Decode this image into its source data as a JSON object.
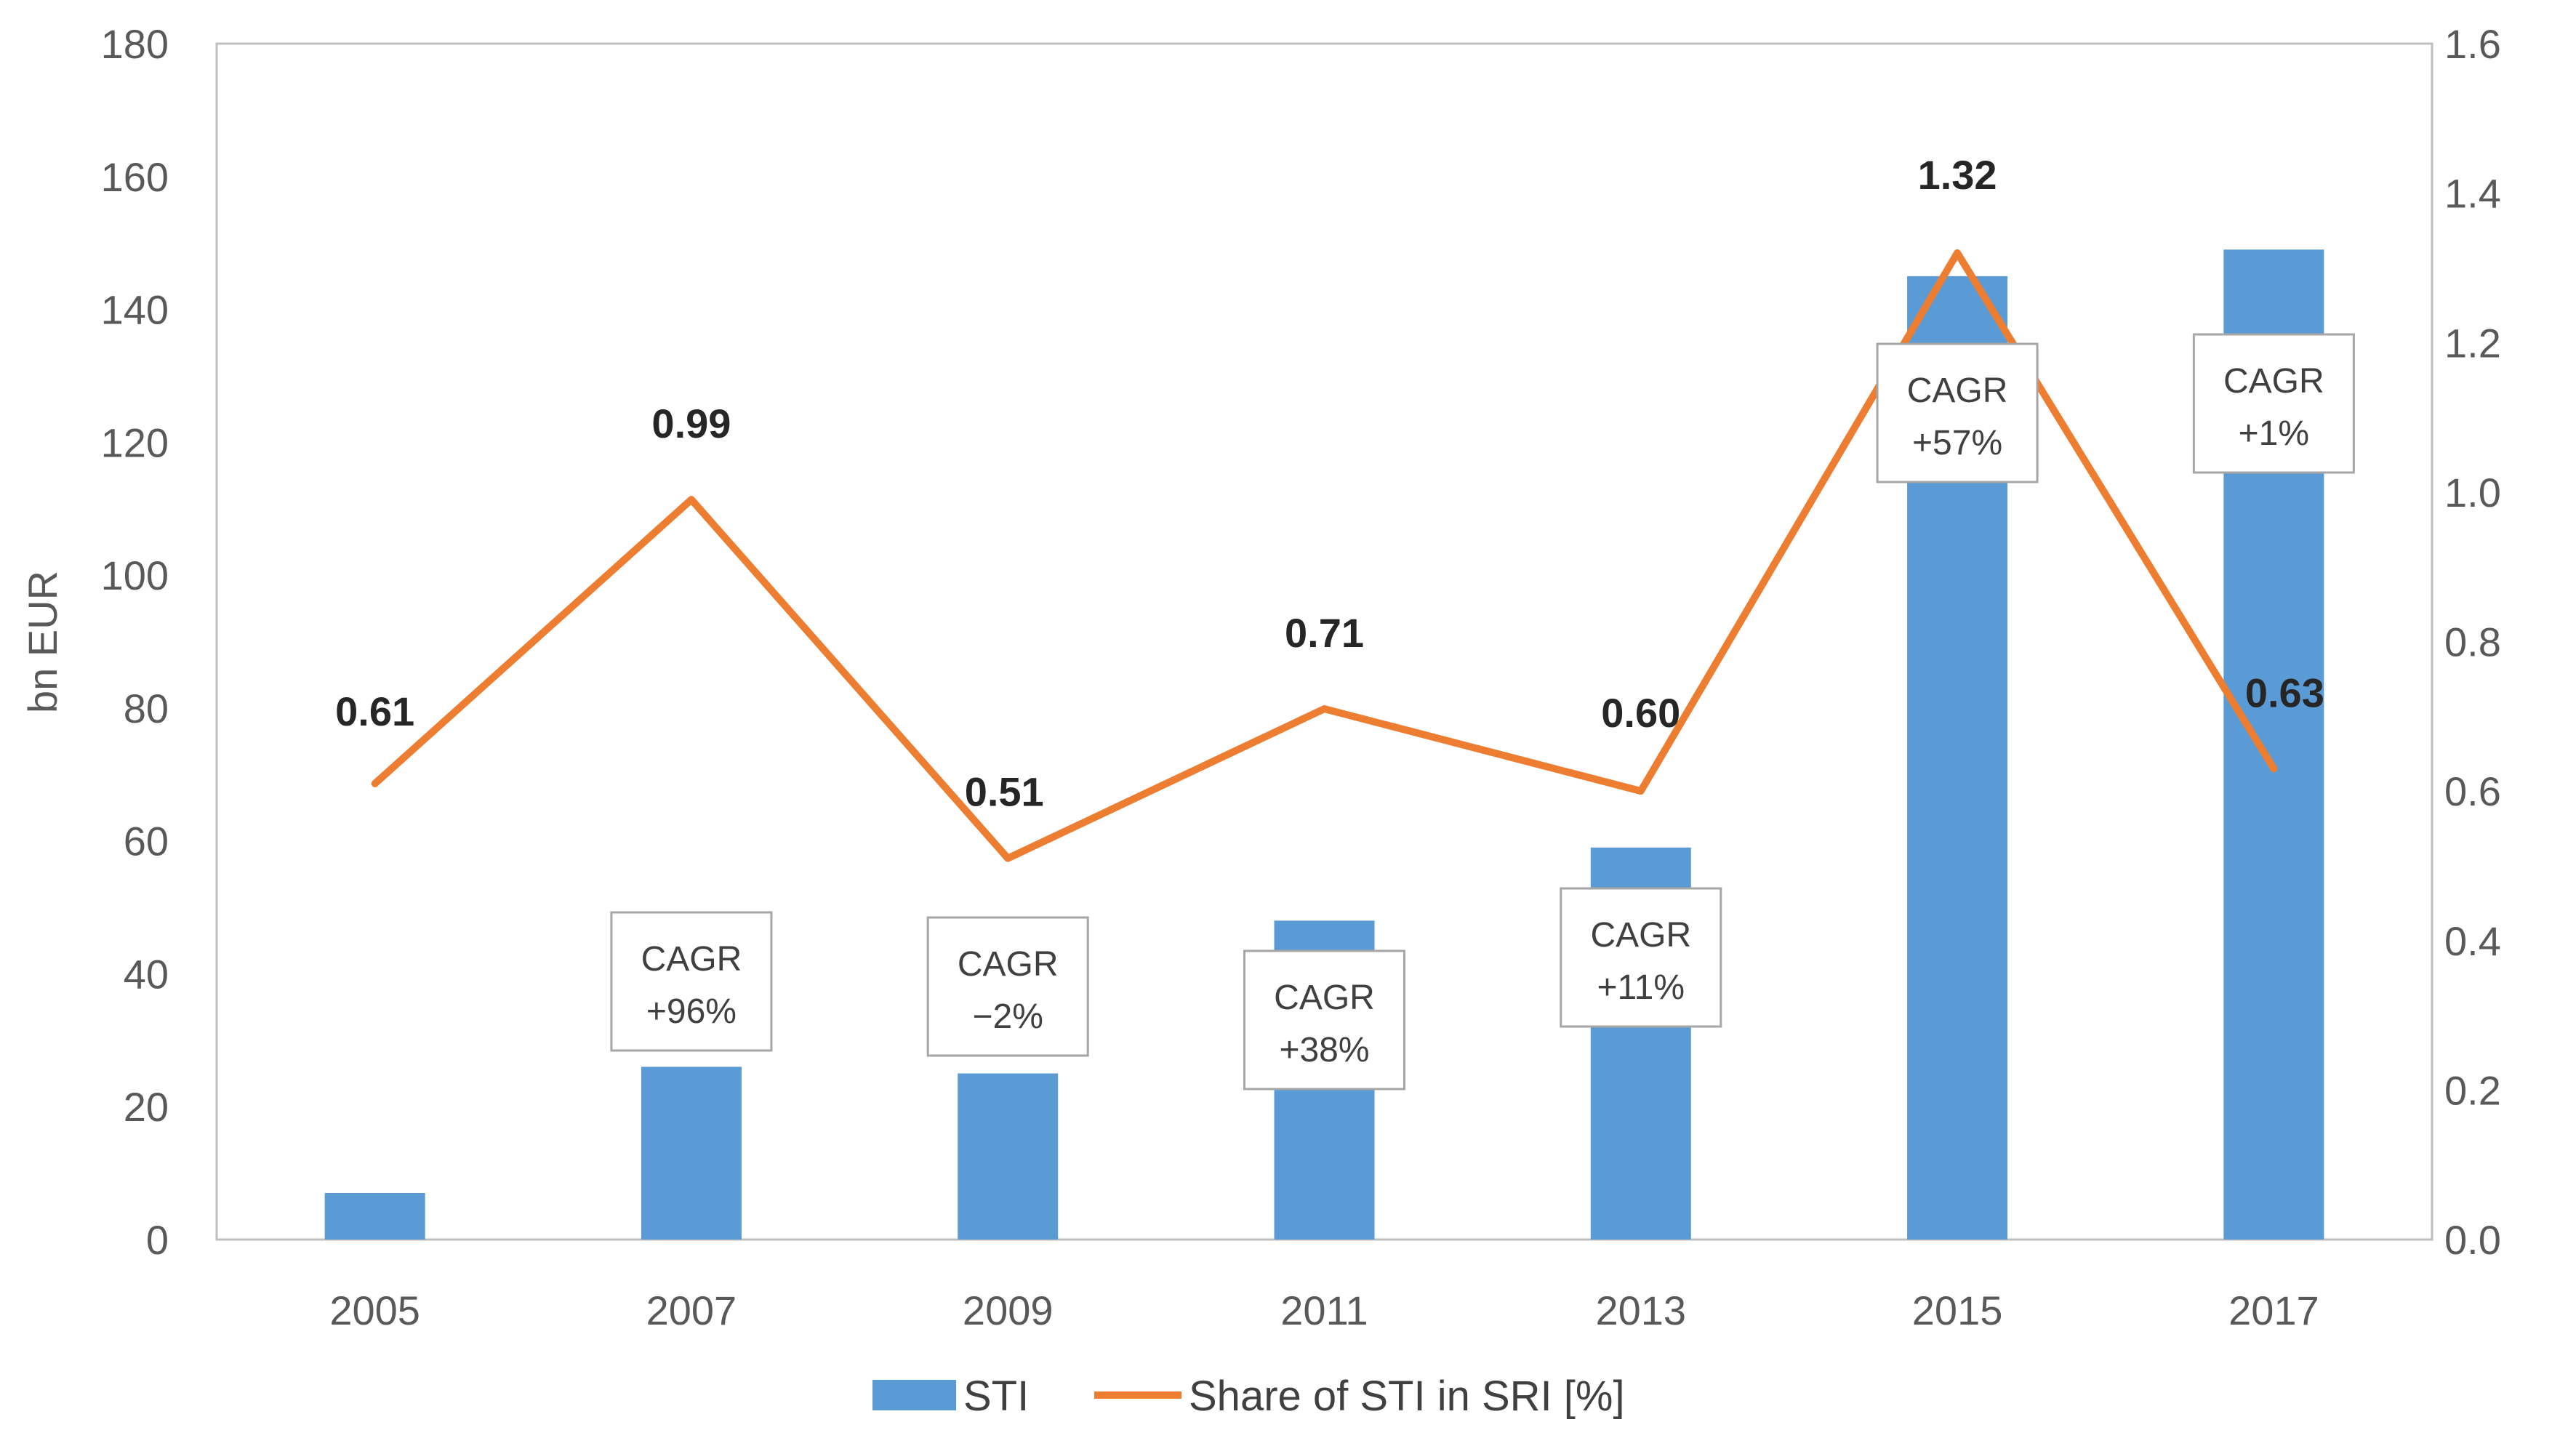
{
  "chart_data": {
    "type": "bar",
    "categories": [
      "2005",
      "2007",
      "2009",
      "2011",
      "2013",
      "2015",
      "2017"
    ],
    "series": [
      {
        "name": "STI",
        "kind": "bar",
        "axis": "left",
        "color": "#5B9BD5",
        "values": [
          7,
          26,
          25,
          48,
          59,
          145,
          149
        ]
      },
      {
        "name": "Share of STI in SRI [%]",
        "kind": "line",
        "axis": "right",
        "color": "#ED7D31",
        "values": [
          0.61,
          0.99,
          0.51,
          0.71,
          0.6,
          1.32,
          0.63
        ],
        "labels": [
          "0.61",
          "0.99",
          "0.51",
          "0.71",
          "0.60",
          "1.32",
          "0.63"
        ]
      }
    ],
    "ylabel": "bn EUR",
    "ylim": [
      0,
      180
    ],
    "yticks": [
      "0",
      "20",
      "40",
      "60",
      "80",
      "100",
      "120",
      "140",
      "160",
      "180"
    ],
    "y2lim": [
      0,
      1.6
    ],
    "y2ticks": [
      "0.0",
      "0.2",
      "0.4",
      "0.6",
      "0.8",
      "1.0",
      "1.2",
      "1.4",
      "1.6"
    ],
    "annotations": [
      {
        "category": "2007",
        "line1": "CAGR",
        "line2": "+96%"
      },
      {
        "category": "2009",
        "line1": "CAGR",
        "line2": "−2%"
      },
      {
        "category": "2011",
        "line1": "CAGR",
        "line2": "+38%"
      },
      {
        "category": "2013",
        "line1": "CAGR",
        "line2": "+11%"
      },
      {
        "category": "2015",
        "line1": "CAGR",
        "line2": "+57%"
      },
      {
        "category": "2017",
        "line1": "CAGR",
        "line2": "+1%"
      }
    ],
    "legend_position": "bottom",
    "grid": false
  }
}
